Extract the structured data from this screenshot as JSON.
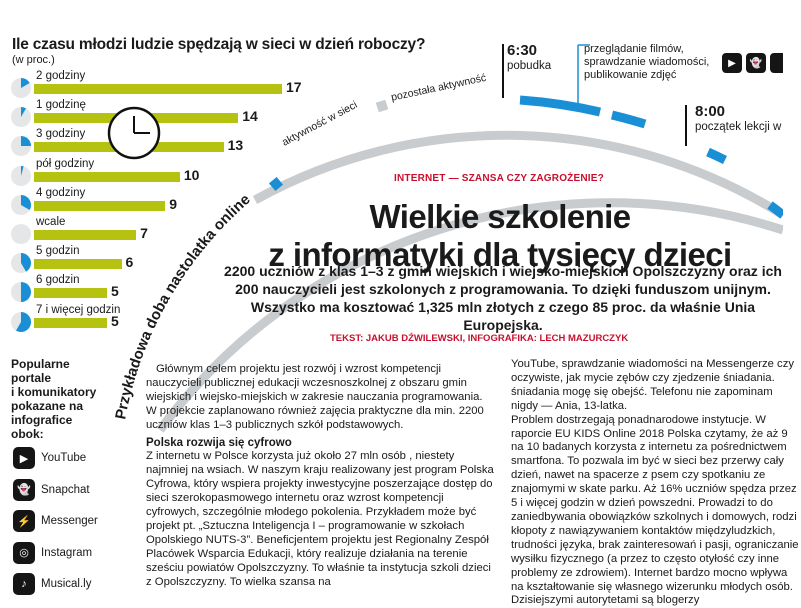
{
  "chart": {
    "title": "Ile czasu młodzi ludzie spędzają w sieci w dzień roboczy?",
    "unit": "(w proc.)",
    "bars": [
      {
        "label": "2 godziny",
        "value": 17,
        "hours": 2
      },
      {
        "label": "1 godzinę",
        "value": 14,
        "hours": 1
      },
      {
        "label": "3 godziny",
        "value": 13,
        "hours": 3
      },
      {
        "label": "pół godziny",
        "value": 10,
        "hours": 0.5
      },
      {
        "label": "4 godziny",
        "value": 9,
        "hours": 4
      },
      {
        "label": "wcale",
        "value": 7,
        "hours": 0
      },
      {
        "label": "5 godzin",
        "value": 6,
        "hours": 5
      },
      {
        "label": "6 godzin",
        "value": 5,
        "hours": 6
      },
      {
        "label": "7 i więcej godzin",
        "value": 5,
        "hours": 7
      }
    ]
  },
  "chart_data": {
    "type": "bar",
    "title": "Ile czasu młodzi ludzie spędzają w sieci w dzień roboczy?",
    "ylabel": "(w proc.)",
    "categories": [
      "2 godziny",
      "1 godzinę",
      "3 godziny",
      "pół godziny",
      "4 godziny",
      "wcale",
      "5 godzin",
      "6 godzin",
      "7 i więcej godzin"
    ],
    "values": [
      17,
      14,
      13,
      10,
      9,
      7,
      6,
      5,
      5
    ],
    "orientation": "horizontal"
  },
  "timeline": {
    "arc_title": "Przykładowa doba nastolatka online",
    "legend_online": "aktywność w sieci",
    "legend_other": "pozostała aktywność",
    "events": [
      {
        "time": "6:30",
        "desc": "pobudka"
      },
      {
        "time": "8:00",
        "desc": "początek lekcji w"
      }
    ],
    "note": "przeglądanie filmów, sprawdzanie wiadomości, publikowanie zdjęć",
    "note_lines": [
      "przeglądanie filmów,",
      "sprawdzanie wiadomości,",
      "publikowanie zdjęć"
    ],
    "colors": {
      "online": "#1a8fd6",
      "other": "#c9cccf",
      "bar": "#b5c20f",
      "accent": "#c8102e"
    }
  },
  "article": {
    "section": "INTERNET — SZANSA CZY ZAGROŻENIE?",
    "headline1": "Wielkie szkolenie",
    "headline2": "z informatyki dla tysięcy dzieci",
    "lead": "2200 uczniów z klas 1–3 z gmin wiejskich i wiejsko-miejskich Opolszczyzny oraz ich 200 nauczycieli jest szkolonych z programowania. To dzięki funduszom unijnym. Wszystko ma kosztować 1,325 mln złotych z czego 85 proc. da właśnie Unia Europejska.",
    "byline": "TEKST: JAKUB DŹWILEWSKI, INFOGRAFIKA: LECH MAZURCZYK",
    "col1_p1": "Głównym celem projektu jest rozwój i wzrost kompetencji nauczycieli publicznej edukacji wczesnoszkolnej z obszaru gmin wiejskich i wiejsko-miejskich w zakresie nauczania programowania. W projekcie zaplanowano również zajęcia praktyczne dla min. 2200 uczniów klas 1–3 publicznych szkół podstawowych.",
    "col1_sub": "Polska rozwija się cyfrowo",
    "col1_p2": "Z internetu w Polsce korzysta już około 27 mln osób , niestety najmniej na wsiach. W naszym kraju realizowany jest program Polska Cyfrowa, który wspiera projekty inwestycyjne poszerzające dostęp do sieci szerokopasmowego internetu oraz wzrost kompetencji cyfrowych, szczególnie młodego pokolenia. Przykładem może być projekt pt. „Sztuczna Inteligencja I – programowanie w szkołach Opolskiego NUTS-3”. Beneficjentem projektu jest Regionalny Zespół Placówek Wsparcia Edukacji, który realizuje działania na terenie sześciu powiatów Opolszczyzny. To właśnie ta instytucja szkoli dzieci z Opolszczyzny. To wielka szansa na",
    "col2_p1": "YouTube, sprawdzanie wiadomości na Messengerze czy oczywiste, jak mycie zębów czy zjedzenie śniadania. śniadania mogę się obejść. Telefonu nie zapominam nigdy — Ania, 13-latka.",
    "col2_p2": "Problem dostrzegają ponadnarodowe instytucje. W raporcie EU KIDS Online 2018 Polska czytamy, że aż 9 na 10 badanych korzysta z internetu za pośrednictwem smartfona. To pozwala im być w sieci bez przerwy cały dzień, nawet na spacerze z psem czy spotkaniu ze znajomymi w skate parku. Aż 16% uczniów spędza przez 5 i więcej godzin w dzień powszedni. Prowadzi to do zaniedbywania obowiązków szkolnych i domowych, rodzi kłopoty z nawiązywaniem kontaktów międzyludzkich, trudności języka, brak zainteresowań i pasji, ograniczanie wysiłku fizycznego (a przez to często otyłość czy inne problemy ze zdrowiem). Internet bardzo mocno wpływa na kształtowanie się własnego wizerunku młodych osób. Dzisiejszymi autorytetami są blogerzy"
  },
  "portals": {
    "title_lines": [
      "Popularne",
      "portale",
      "i komunikatory",
      "pokazane na",
      "infografice",
      "obok:"
    ],
    "items": [
      {
        "name": "YouTube",
        "icon": "youtube-icon",
        "glyph": "▶"
      },
      {
        "name": "Snapchat",
        "icon": "snapchat-icon",
        "glyph": "👻"
      },
      {
        "name": "Messenger",
        "icon": "messenger-icon",
        "glyph": "⚡"
      },
      {
        "name": "Instagram",
        "icon": "instagram-icon",
        "glyph": "◎"
      },
      {
        "name": "Musical.ly",
        "icon": "musically-icon",
        "glyph": "♪"
      }
    ]
  }
}
